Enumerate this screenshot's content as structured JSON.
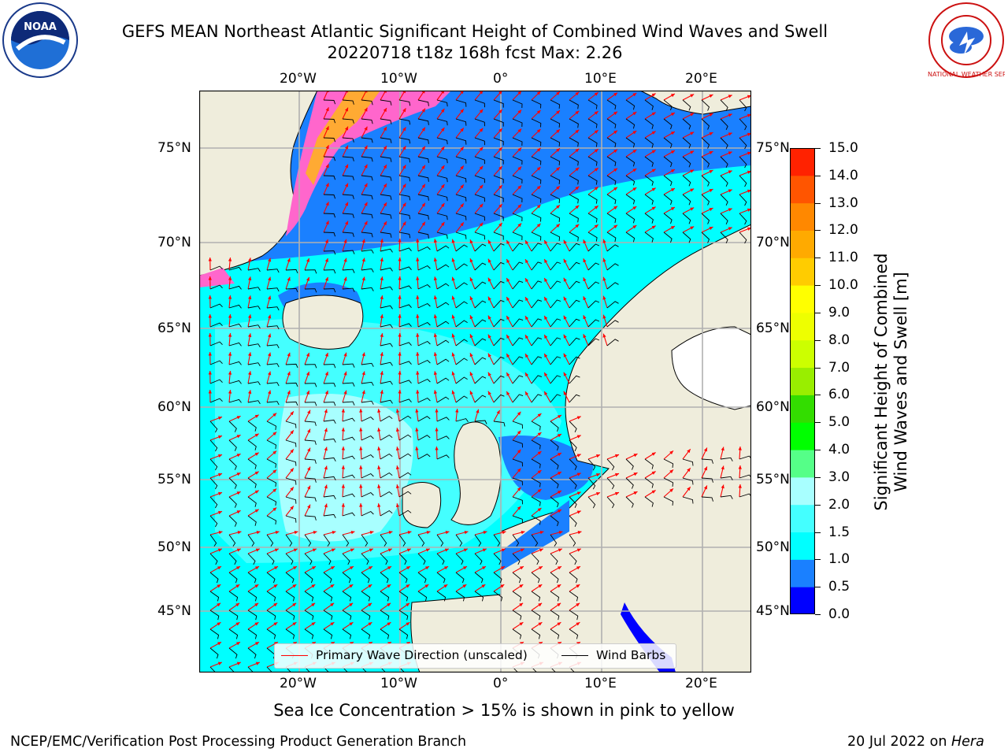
{
  "header": {
    "title_line1": "GEFS MEAN Northeast Atlantic Significant Height of Combined Wind Waves and Swell",
    "title_line2": "20220718 t18z 168h fcst   Max: 2.26"
  },
  "logos": {
    "left": {
      "icon": "noaa-logo",
      "text": "NOAA"
    },
    "right": {
      "icon": "national-weather-service-logo",
      "text": "NATIONAL WEATHER SERVICE"
    }
  },
  "map": {
    "lon_labels": [
      "20°W",
      "10°W",
      "0°",
      "10°E",
      "20°E"
    ],
    "lat_labels": [
      "75°N",
      "70°N",
      "65°N",
      "60°N",
      "55°N",
      "50°N",
      "45°N"
    ],
    "colors": {
      "land": "#efeddc",
      "ocean_base": "#00ffff",
      "ocean_mid": "#44ffff",
      "ocean_high": "#a8ffff",
      "ocean_low": "#1a80ff",
      "ocean_very_low": "#0000ff",
      "ice_pink": "#ff66cc",
      "ice_orange": "#ffaa33",
      "grid": "#b0b0b0",
      "wave_arrow": "#ff0000",
      "wind_barb": "#000000"
    }
  },
  "legend": {
    "wave_label": "Primary Wave Direction (unscaled)",
    "barb_label": "Wind Barbs"
  },
  "colorbar": {
    "title_line1": "Significant Height of Combined",
    "title_line2": "Wind Waves and Swell [m]",
    "ticks": [
      "0.0",
      "0.5",
      "1.0",
      "1.5",
      "2.0",
      "3.0",
      "4.0",
      "5.0",
      "6.0",
      "7.0",
      "8.0",
      "9.0",
      "10.0",
      "11.0",
      "12.0",
      "13.0",
      "14.0",
      "15.0"
    ],
    "colors": [
      "#0000ff",
      "#1a80ff",
      "#00ffff",
      "#44ffff",
      "#a8ffff",
      "#55ff88",
      "#00ff00",
      "#33dd00",
      "#99ee00",
      "#ccff00",
      "#eeff00",
      "#ffff00",
      "#ffcc00",
      "#ffaa00",
      "#ff8800",
      "#ff5500",
      "#ff2200"
    ]
  },
  "notes": {
    "sea_ice": "Sea Ice Concentration > 15% is shown in pink to yellow"
  },
  "footer": {
    "left": "NCEP/EMC/Verification Post Processing Product Generation Branch",
    "right_prefix": "20 Jul 2022 on ",
    "right_machine": "Hera"
  }
}
